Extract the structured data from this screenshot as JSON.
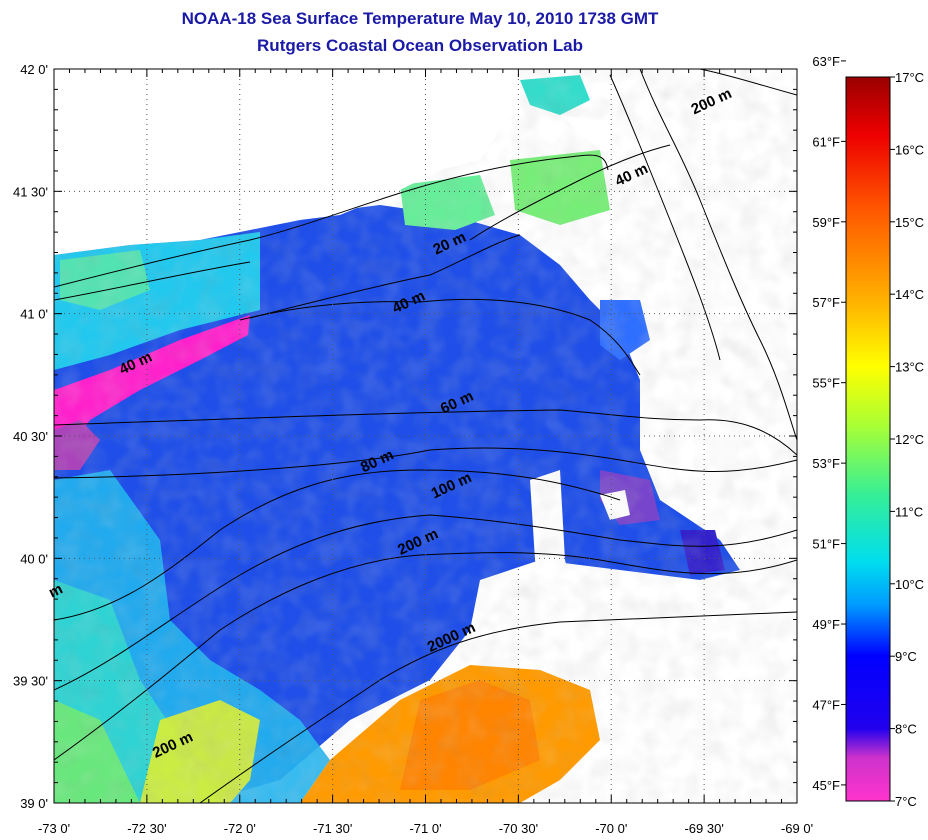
{
  "header": {
    "title": "NOAA-18 Sea Surface Temperature May 10, 2010 1738 GMT",
    "subtitle": "Rutgers Coastal Ocean Observation Lab"
  },
  "map": {
    "lat_labels": [
      "42 0'",
      "41 30'",
      "41 0'",
      "40 30'",
      "40 0'",
      "39 30'",
      "39 0'"
    ],
    "lat_values": [
      42.0,
      41.5,
      41.0,
      40.5,
      40.0,
      39.5,
      39.0
    ],
    "lon_labels": [
      "-73 0'",
      "-72 30'",
      "-72 0'",
      "-71 30'",
      "-71 0'",
      "-70 30'",
      "-70 0'",
      "-69 30'",
      "-69 0'"
    ],
    "lon_values": [
      -73.0,
      -72.5,
      -72.0,
      -71.5,
      -71.0,
      -70.5,
      -70.0,
      -69.5,
      -69.0
    ],
    "lat_range": [
      39.0,
      42.0
    ],
    "lon_range": [
      -73.0,
      -69.0
    ],
    "grid": "dotted",
    "depth_labels": [
      {
        "text": "200 m",
        "lon": -69.45,
        "lat": 41.85
      },
      {
        "text": "40 m",
        "lon": -69.88,
        "lat": 41.55
      },
      {
        "text": "20 m",
        "lon": -70.86,
        "lat": 41.27
      },
      {
        "text": "40 m",
        "lon": -71.08,
        "lat": 41.03
      },
      {
        "text": "40 m",
        "lon": -72.55,
        "lat": 40.78
      },
      {
        "text": "60 m",
        "lon": -70.82,
        "lat": 40.62
      },
      {
        "text": "80 m",
        "lon": -71.25,
        "lat": 40.38
      },
      {
        "text": "100 m",
        "lon": -70.85,
        "lat": 40.28
      },
      {
        "text": "200 m",
        "lon": -71.03,
        "lat": 40.05
      },
      {
        "text": "2000 m",
        "lon": -70.85,
        "lat": 39.66
      },
      {
        "text": "200 m",
        "lon": -72.35,
        "lat": 39.22
      },
      {
        "text": "m",
        "lon": -72.98,
        "lat": 39.85
      }
    ]
  },
  "colorbar": {
    "fahrenheit_labels": [
      "63°F",
      "61°F",
      "59°F",
      "57°F",
      "55°F",
      "53°F",
      "51°F",
      "49°F",
      "47°F",
      "45°F"
    ],
    "fahrenheit_values": [
      63,
      61,
      59,
      57,
      55,
      53,
      51,
      49,
      47,
      45
    ],
    "celsius_labels": [
      "17°C",
      "16°C",
      "15°C",
      "14°C",
      "13°C",
      "12°C",
      "11°C",
      "10°C",
      "9°C",
      "8°C",
      "7°C"
    ],
    "celsius_values": [
      17,
      16,
      15,
      14,
      13,
      12,
      11,
      10,
      9,
      8,
      7
    ],
    "range_c": [
      7,
      17
    ],
    "colors": [
      "#ff33cc",
      "#9933cc",
      "#0000ff",
      "#0099ff",
      "#00ccee",
      "#33ee88",
      "#ccff33",
      "#ffff00",
      "#ffaa00",
      "#ff5500",
      "#ee0000",
      "#990000"
    ]
  }
}
